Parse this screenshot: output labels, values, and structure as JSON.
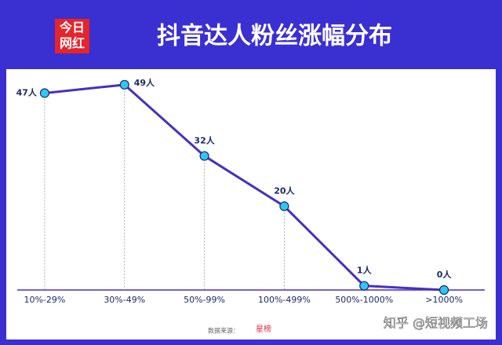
{
  "chart_data": {
    "type": "line",
    "title": "抖音达人粉丝涨幅分布",
    "logo": [
      "今日",
      "网红"
    ],
    "categories": [
      "10%-29%",
      "30%-49%",
      "50%-99%",
      "100%-499%",
      "500%-1000%",
      ">1000%"
    ],
    "values": [
      47,
      49,
      32,
      20,
      1,
      0
    ],
    "value_labels": [
      "47人",
      "49人",
      "32人",
      "20人",
      "1人",
      "0人"
    ],
    "color": "#4a2fbd",
    "marker_color": "#2ec7f3",
    "ylim": [
      0,
      50
    ],
    "source_label": "数据来源：",
    "source_name": "星榜",
    "watermark": "知乎 @短视频工场"
  }
}
